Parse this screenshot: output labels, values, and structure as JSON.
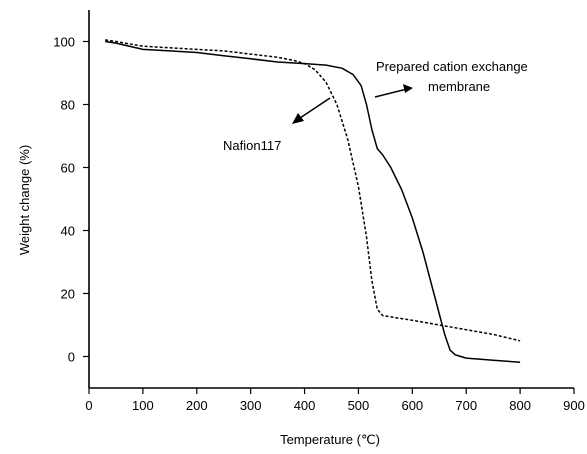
{
  "chart_data": {
    "type": "line",
    "xlabel": "Temperature (℃)",
    "ylabel": "Weight change (%)",
    "xlim": [
      0,
      900
    ],
    "ylim": [
      -10,
      110
    ],
    "xticks": [
      0,
      100,
      200,
      300,
      400,
      500,
      600,
      700,
      800,
      900
    ],
    "yticks": [
      0,
      20,
      40,
      60,
      80,
      100
    ],
    "grid": false,
    "series": [
      {
        "name": "Prepared cation exchange membrane",
        "style": "solid",
        "x": [
          30,
          50,
          100,
          150,
          200,
          250,
          300,
          350,
          400,
          440,
          470,
          490,
          505,
          515,
          525,
          535,
          540,
          545,
          560,
          580,
          600,
          620,
          640,
          660,
          670,
          680,
          700,
          750,
          800
        ],
        "y": [
          100,
          99.5,
          97.5,
          97,
          96.5,
          95.5,
          94.5,
          93.5,
          93,
          92.5,
          91.5,
          89.5,
          86,
          80,
          72,
          66,
          65,
          64,
          60,
          53,
          44,
          33,
          20,
          7,
          2,
          0.5,
          -0.5,
          -1.2,
          -1.8
        ]
      },
      {
        "name": "Nafion117",
        "style": "dashed",
        "x": [
          30,
          50,
          100,
          150,
          200,
          250,
          300,
          350,
          380,
          400,
          420,
          440,
          460,
          480,
          500,
          515,
          525,
          535,
          545,
          600,
          650,
          700,
          750,
          800
        ],
        "y": [
          100.5,
          100,
          98.5,
          98,
          97.5,
          97,
          96,
          95,
          94,
          93,
          91,
          87,
          80,
          69,
          54,
          38,
          24,
          15,
          13,
          11.5,
          10,
          8.5,
          7,
          5
        ]
      }
    ],
    "annotations": [
      {
        "text_lines": [
          "Prepared cation exchange",
          "membrane"
        ],
        "series": 0
      },
      {
        "text_lines": [
          "Nafion117"
        ],
        "series": 1
      }
    ]
  }
}
